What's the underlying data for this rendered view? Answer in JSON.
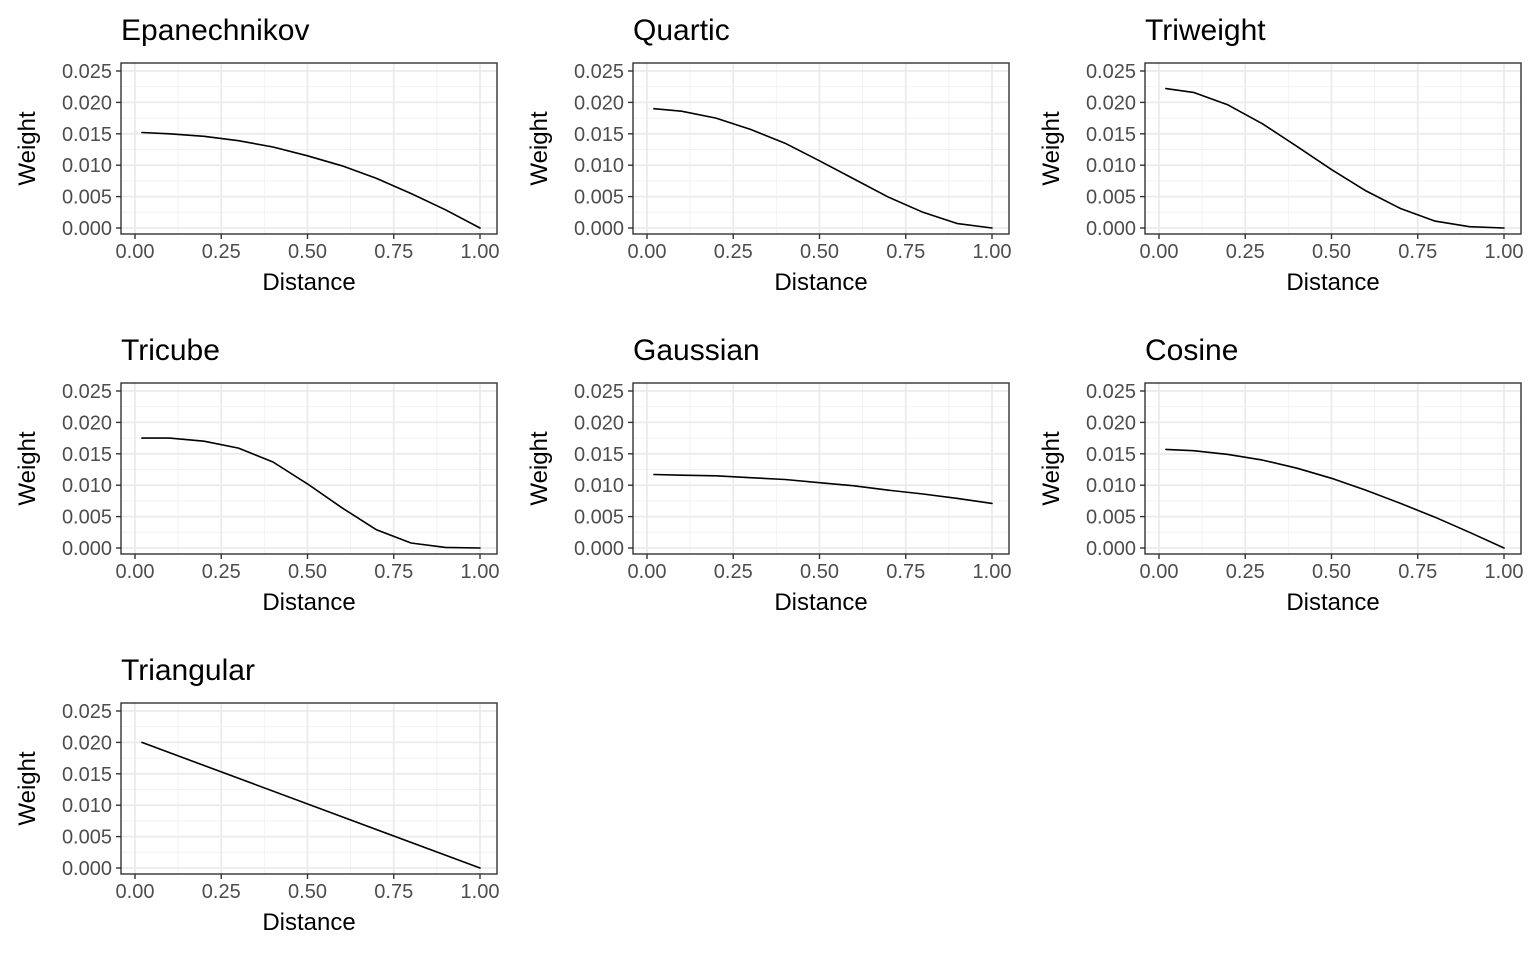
{
  "chart_data": [
    {
      "type": "line",
      "title": "Epanechnikov",
      "xlabel": "Distance",
      "ylabel": "Weight",
      "xlim": [
        0,
        1
      ],
      "ylim": [
        0,
        0.025
      ],
      "grid": true,
      "xticks": [
        "0.00",
        "0.25",
        "0.50",
        "0.75",
        "1.00"
      ],
      "yticks": [
        "0.000",
        "0.005",
        "0.010",
        "0.015",
        "0.020",
        "0.025"
      ],
      "series": [
        {
          "x": [
            0.02,
            0.1,
            0.2,
            0.3,
            0.4,
            0.5,
            0.6,
            0.7,
            0.8,
            0.9,
            1.0
          ],
          "y": [
            0.0152,
            0.015,
            0.0146,
            0.0139,
            0.0129,
            0.0115,
            0.0099,
            0.0079,
            0.0055,
            0.0029,
            0.0
          ]
        }
      ]
    },
    {
      "type": "line",
      "title": "Quartic",
      "xlabel": "Distance",
      "ylabel": "Weight",
      "xlim": [
        0,
        1
      ],
      "ylim": [
        0,
        0.025
      ],
      "grid": true,
      "xticks": [
        "0.00",
        "0.25",
        "0.50",
        "0.75",
        "1.00"
      ],
      "yticks": [
        "0.000",
        "0.005",
        "0.010",
        "0.015",
        "0.020",
        "0.025"
      ],
      "series": [
        {
          "x": [
            0.02,
            0.1,
            0.2,
            0.3,
            0.4,
            0.5,
            0.6,
            0.7,
            0.8,
            0.9,
            1.0
          ],
          "y": [
            0.019,
            0.0186,
            0.0175,
            0.0157,
            0.0135,
            0.0107,
            0.0078,
            0.0049,
            0.0025,
            0.0007,
            0.0
          ]
        }
      ]
    },
    {
      "type": "line",
      "title": "Triweight",
      "xlabel": "Distance",
      "ylabel": "Weight",
      "xlim": [
        0,
        1
      ],
      "ylim": [
        0,
        0.025
      ],
      "grid": true,
      "xticks": [
        "0.00",
        "0.25",
        "0.50",
        "0.75",
        "1.00"
      ],
      "yticks": [
        "0.000",
        "0.005",
        "0.010",
        "0.015",
        "0.020",
        "0.025"
      ],
      "series": [
        {
          "x": [
            0.02,
            0.1,
            0.2,
            0.3,
            0.4,
            0.5,
            0.6,
            0.7,
            0.8,
            0.9,
            1.0
          ],
          "y": [
            0.0222,
            0.0216,
            0.0196,
            0.0166,
            0.013,
            0.0093,
            0.0059,
            0.0031,
            0.0011,
            0.0002,
            0.0
          ]
        }
      ]
    },
    {
      "type": "line",
      "title": "Tricube",
      "xlabel": "Distance",
      "ylabel": "Weight",
      "xlim": [
        0,
        1
      ],
      "ylim": [
        0,
        0.025
      ],
      "grid": true,
      "xticks": [
        "0.00",
        "0.25",
        "0.50",
        "0.75",
        "1.00"
      ],
      "yticks": [
        "0.000",
        "0.005",
        "0.010",
        "0.015",
        "0.020",
        "0.025"
      ],
      "series": [
        {
          "x": [
            0.02,
            0.1,
            0.2,
            0.3,
            0.4,
            0.5,
            0.6,
            0.7,
            0.8,
            0.9,
            1.0
          ],
          "y": [
            0.0175,
            0.0175,
            0.017,
            0.0159,
            0.0137,
            0.0102,
            0.0064,
            0.0029,
            0.0008,
            0.0001,
            0.0
          ]
        }
      ]
    },
    {
      "type": "line",
      "title": "Gaussian",
      "xlabel": "Distance",
      "ylabel": "Weight",
      "xlim": [
        0,
        1
      ],
      "ylim": [
        0,
        0.025
      ],
      "grid": true,
      "xticks": [
        "0.00",
        "0.25",
        "0.50",
        "0.75",
        "1.00"
      ],
      "yticks": [
        "0.000",
        "0.005",
        "0.010",
        "0.015",
        "0.020",
        "0.025"
      ],
      "series": [
        {
          "x": [
            0.02,
            0.1,
            0.2,
            0.3,
            0.4,
            0.5,
            0.6,
            0.7,
            0.8,
            0.9,
            1.0
          ],
          "y": [
            0.0117,
            0.0116,
            0.0115,
            0.0112,
            0.0109,
            0.0104,
            0.0099,
            0.0092,
            0.0086,
            0.0079,
            0.0071
          ]
        }
      ]
    },
    {
      "type": "line",
      "title": "Cosine",
      "xlabel": "Distance",
      "ylabel": "Weight",
      "xlim": [
        0,
        1
      ],
      "ylim": [
        0,
        0.025
      ],
      "grid": true,
      "xticks": [
        "0.00",
        "0.25",
        "0.50",
        "0.75",
        "1.00"
      ],
      "yticks": [
        "0.000",
        "0.005",
        "0.010",
        "0.015",
        "0.020",
        "0.025"
      ],
      "series": [
        {
          "x": [
            0.02,
            0.1,
            0.2,
            0.3,
            0.4,
            0.5,
            0.6,
            0.7,
            0.8,
            0.9,
            1.0
          ],
          "y": [
            0.0157,
            0.0155,
            0.0149,
            0.014,
            0.0127,
            0.0111,
            0.0092,
            0.0071,
            0.0049,
            0.0025,
            0.0
          ]
        }
      ]
    },
    {
      "type": "line",
      "title": "Triangular",
      "xlabel": "Distance",
      "ylabel": "Weight",
      "xlim": [
        0,
        1
      ],
      "ylim": [
        0,
        0.025
      ],
      "grid": true,
      "xticks": [
        "0.00",
        "0.25",
        "0.50",
        "0.75",
        "1.00"
      ],
      "yticks": [
        "0.000",
        "0.005",
        "0.010",
        "0.015",
        "0.020",
        "0.025"
      ],
      "series": [
        {
          "x": [
            0.02,
            1.0
          ],
          "y": [
            0.02,
            0.0
          ]
        }
      ]
    }
  ]
}
